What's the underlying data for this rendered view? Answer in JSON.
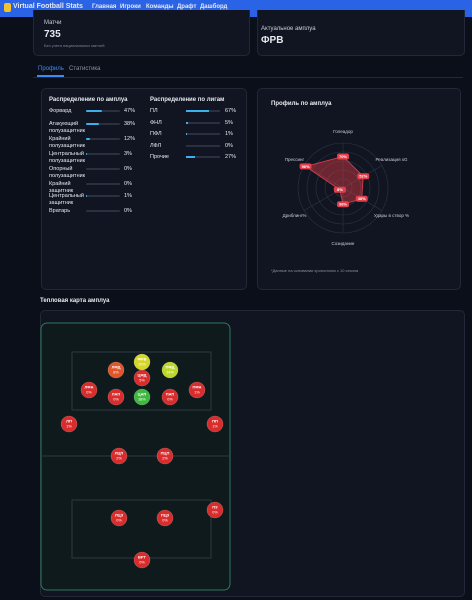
{
  "nav": {
    "brand": "Virtual Football Stats",
    "links": [
      "Главная",
      "Игроки",
      "Команды",
      "Драфт",
      "Дашборд"
    ]
  },
  "cards": [
    {
      "label": "Матчи",
      "value": "735",
      "note": "Без учета национальных матчей"
    },
    {
      "label": "Актуальное амплуа",
      "value": "ФРВ"
    }
  ],
  "tabs": [
    "Профиль",
    "Статистика"
  ],
  "roles": {
    "title": "Распределение по амплуа",
    "rows": [
      {
        "name": "Форвард",
        "percent": 47,
        "label": "47%"
      },
      {
        "name": "Атакующий полузащитник",
        "percent": 38,
        "label": "38%"
      },
      {
        "name": "Крайний полузащитник",
        "percent": 12,
        "label": "12%"
      },
      {
        "name": "Центральный полузащитник",
        "percent": 3,
        "label": "3%"
      },
      {
        "name": "Опорный полузащитник",
        "percent": 0,
        "label": "0%"
      },
      {
        "name": "Крайний защитник",
        "percent": 0,
        "label": "0%"
      },
      {
        "name": "Центральный защитник",
        "percent": 1,
        "label": "1%"
      },
      {
        "name": "Вратарь",
        "percent": 0,
        "label": "0%"
      }
    ]
  },
  "leagues": {
    "title": "Распределение по лигам",
    "rows": [
      {
        "name": "ПЛ",
        "percent": 67,
        "label": "67%"
      },
      {
        "name": "ФНЛ",
        "percent": 5,
        "label": "5%"
      },
      {
        "name": "ПФЛ",
        "percent": 1,
        "label": "1%"
      },
      {
        "name": "ЛФЛ",
        "percent": 0,
        "label": "0%"
      },
      {
        "name": "Прочие",
        "percent": 27,
        "label": "27%"
      }
    ]
  },
  "radar": {
    "title": "Профиль по амплуа",
    "max": 100,
    "axes": [
      {
        "name": "Голеадор",
        "percent": 70,
        "label": "70%"
      },
      {
        "name": "Реализация xG",
        "percent": 52,
        "label": "52%"
      },
      {
        "name": "Удары в створ %",
        "percent": 48,
        "label": "48%"
      },
      {
        "name": "Созидание",
        "percent": 36,
        "label": "36%"
      },
      {
        "name": "Дриблинг%",
        "percent": 8,
        "label": "8%"
      },
      {
        "name": "Прессинг",
        "percent": 96,
        "label": "96%"
      }
    ],
    "note": "*Данные на основании хронологии с 10 сезона"
  },
  "heatmap": {
    "title": "Тепловая карта амплуа",
    "nodes": [
      {
        "code": "ФРВ",
        "label": "20%",
        "color": "#d4d629"
      },
      {
        "code": "ЛФД",
        "label": "8%",
        "color": "#e0552a"
      },
      {
        "code": "ПФД",
        "label": "14%",
        "color": "#bcd62a"
      },
      {
        "code": "ЦФД",
        "label": "5%",
        "color": "#d92c2c"
      },
      {
        "code": "ЛФА",
        "label": "0%",
        "color": "#d92c2c"
      },
      {
        "code": "ЛАП",
        "label": "0%",
        "color": "#d92c2c"
      },
      {
        "code": "ЦАП",
        "label": "38%",
        "color": "#3fb83f"
      },
      {
        "code": "ПАП",
        "label": "0%",
        "color": "#d92c2c"
      },
      {
        "code": "ПФА",
        "label": "1%",
        "color": "#d92c2c"
      },
      {
        "code": "ЛП",
        "label": "1%",
        "color": "#d92c2c"
      },
      {
        "code": "ПП",
        "label": "1%",
        "color": "#d92c2c"
      },
      {
        "code": "ЛЦП",
        "label": "2%",
        "color": "#d92c2c"
      },
      {
        "code": "ПЦП",
        "label": "2%",
        "color": "#d92c2c"
      },
      {
        "code": "ЛЦЗ",
        "label": "0%",
        "color": "#d92c2c"
      },
      {
        "code": "ПЦЗ",
        "label": "0%",
        "color": "#d92c2c"
      },
      {
        "code": "ПЗ",
        "label": "0%",
        "color": "#d92c2c"
      },
      {
        "code": "ВРТ",
        "label": "0%",
        "color": "#d92c2c"
      }
    ]
  }
}
